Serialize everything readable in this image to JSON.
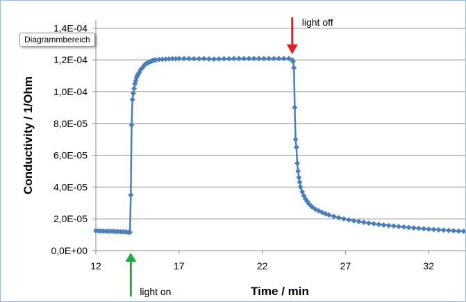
{
  "tooltip": "Diagrammbereich",
  "chart_data": {
    "type": "scatter",
    "xlabel": "Time / min",
    "ylabel": "Conductivity / 1/Ohm",
    "xlim": [
      12,
      34.2
    ],
    "ylim": [
      0,
      0.000145
    ],
    "x_ticks": [
      12,
      17,
      22,
      27,
      32
    ],
    "x_tick_labels": [
      "12",
      "17",
      "22",
      "27",
      "32"
    ],
    "y_ticks": [
      0,
      2e-05,
      4e-05,
      6e-05,
      8e-05,
      0.0001,
      0.00012,
      0.00014
    ],
    "y_tick_labels": [
      "0,0E+00",
      "2,0E-05",
      "4,0E-05",
      "6,0E-05",
      "8,0E-05",
      "1,0E-04",
      "1,2E-04",
      "1,4E-04"
    ],
    "grid": true,
    "series_color": "#4a7ebb",
    "light_on_color": "#22aa44",
    "light_off_color": "#e02020",
    "annotations": [
      {
        "text": "light on",
        "x": 14.1,
        "arrow": "up"
      },
      {
        "text": "light off",
        "x": 23.8,
        "arrow": "down"
      }
    ],
    "series": [
      {
        "x": [
          12.0,
          12.15,
          12.3,
          12.45,
          12.6,
          12.75,
          12.9,
          13.05,
          13.2,
          13.35,
          13.5,
          13.65,
          13.8,
          13.95,
          14.05,
          14.1,
          14.15,
          14.2,
          14.25,
          14.3,
          14.35,
          14.4,
          14.45,
          14.5,
          14.55,
          14.6,
          14.7,
          14.8,
          14.9,
          15.0,
          15.1,
          15.2,
          15.3,
          15.4,
          15.5,
          15.6,
          15.8,
          16.0,
          16.2,
          16.4,
          16.6,
          16.8,
          17.0,
          17.3,
          17.6,
          17.9,
          18.2,
          18.5,
          18.8,
          19.1,
          19.4,
          19.7,
          20.0,
          20.3,
          20.6,
          20.9,
          21.2,
          21.5,
          21.8,
          22.1,
          22.4,
          22.7,
          23.0,
          23.3,
          23.6,
          23.8,
          23.85,
          23.9,
          23.95,
          24.0,
          24.05,
          24.1,
          24.15,
          24.2,
          24.25,
          24.3,
          24.4,
          24.5,
          24.6,
          24.7,
          24.8,
          24.9,
          25.0,
          25.2,
          25.4,
          25.6,
          25.8,
          26.0,
          26.3,
          26.6,
          26.9,
          27.2,
          27.5,
          27.8,
          28.1,
          28.4,
          28.7,
          29.0,
          29.3,
          29.6,
          29.9,
          30.2,
          30.5,
          30.8,
          31.1,
          31.4,
          31.7,
          32.0,
          32.3,
          32.6,
          32.9,
          33.2,
          33.5,
          33.8,
          34.1
        ],
        "y": [
          1.25e-05,
          1.24e-05,
          1.23e-05,
          1.23e-05,
          1.22e-05,
          1.22e-05,
          1.21e-05,
          1.21e-05,
          1.2e-05,
          1.2e-05,
          1.19e-05,
          1.19e-05,
          1.18e-05,
          1.15e-05,
          1.15e-05,
          3.5e-05,
          7.9e-05,
          9.5e-05,
          9.9e-05,
          0.000102,
          0.000105,
          0.000107,
          0.000109,
          0.00011,
          0.000111,
          0.000112,
          0.000114,
          0.000115,
          0.0001165,
          0.0001175,
          0.000118,
          0.0001185,
          0.000119,
          0.0001195,
          0.0001198,
          0.00012,
          0.0001202,
          0.0001204,
          0.0001205,
          0.0001206,
          0.0001207,
          0.0001207,
          0.0001208,
          0.0001208,
          0.0001208,
          0.0001207,
          0.0001207,
          0.0001208,
          0.0001206,
          0.0001205,
          0.0001206,
          0.0001207,
          0.0001207,
          0.0001208,
          0.0001208,
          0.0001208,
          0.0001208,
          0.0001208,
          0.0001208,
          0.0001208,
          0.0001208,
          0.0001208,
          0.0001208,
          0.0001208,
          0.0001208,
          0.00012,
          0.000119,
          0.000115,
          9e-05,
          7e-05,
          6.5e-05,
          5.5e-05,
          5e-05,
          4.6e-05,
          4.3e-05,
          4e-05,
          3.7e-05,
          3.45e-05,
          3.25e-05,
          3.1e-05,
          2.95e-05,
          2.85e-05,
          2.75e-05,
          2.6e-05,
          2.5e-05,
          2.4e-05,
          2.32e-05,
          2.25e-05,
          2.15e-05,
          2.07e-05,
          2e-05,
          1.93e-05,
          1.88e-05,
          1.83e-05,
          1.78e-05,
          1.73e-05,
          1.69e-05,
          1.65e-05,
          1.61e-05,
          1.58e-05,
          1.55e-05,
          1.52e-05,
          1.49e-05,
          1.46e-05,
          1.43e-05,
          1.4e-05,
          1.38e-05,
          1.35e-05,
          1.33e-05,
          1.31e-05,
          1.29e-05,
          1.27e-05,
          1.25e-05,
          1.23e-05,
          1.22e-05
        ]
      }
    ]
  }
}
